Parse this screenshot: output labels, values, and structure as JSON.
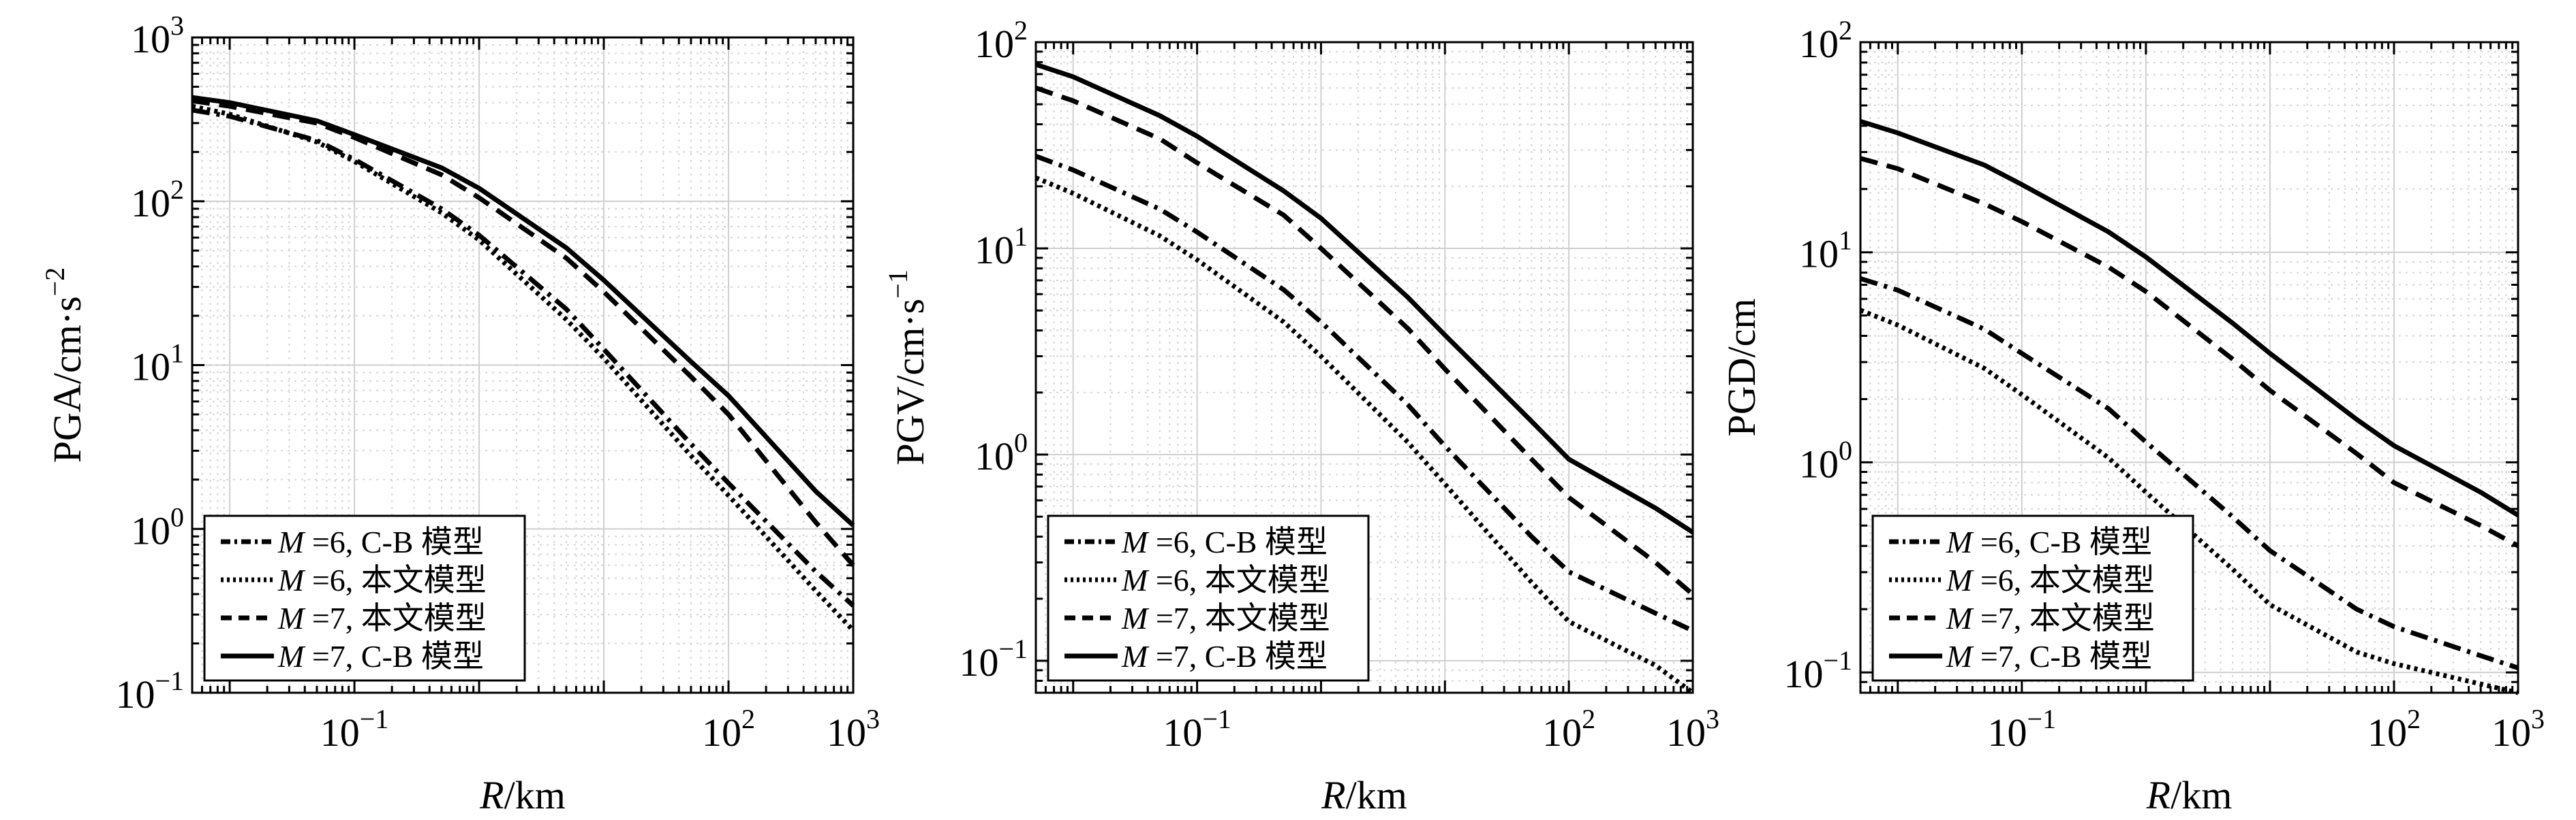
{
  "chart_data": [
    {
      "type": "line",
      "ylabel": "PGA/cm·s",
      "ylabel_unit_exp": "−2",
      "xlabel": "R/km",
      "x_scale": "log",
      "y_scale": "log",
      "xlim": [
        0.005,
        1000
      ],
      "ylim": [
        0.1,
        1000
      ],
      "x_ticks": [
        {
          "base": "10",
          "exp": "−1",
          "value": 0.1
        },
        {
          "base": "10",
          "exp": "2",
          "value": 100
        },
        {
          "base": "10",
          "exp": "3",
          "value": 1000
        }
      ],
      "y_ticks": [
        {
          "base": "10",
          "exp": "−1",
          "value": 0.1
        },
        {
          "base": "10",
          "exp": "0",
          "value": 1
        },
        {
          "base": "10",
          "exp": "1",
          "value": 10
        },
        {
          "base": "10",
          "exp": "2",
          "value": 100
        },
        {
          "base": "10",
          "exp": "3",
          "value": 1000
        }
      ],
      "grid": true,
      "legend_position": "bottom-left",
      "series": [
        {
          "name": "M=6, C-B 模型",
          "style": "dashdot",
          "x": [
            0.005,
            0.01,
            0.05,
            0.1,
            0.5,
            1,
            5,
            10,
            50,
            100,
            500,
            1000
          ],
          "values": [
            360,
            330,
            235,
            180,
            90,
            62,
            22,
            12.5,
            3.3,
            1.9,
            0.55,
            0.34
          ]
        },
        {
          "name": "M=6, 本文模型",
          "style": "dotted",
          "x": [
            0.005,
            0.01,
            0.05,
            0.1,
            0.5,
            1,
            5,
            10,
            50,
            100,
            500,
            1000
          ],
          "values": [
            380,
            340,
            230,
            175,
            85,
            58,
            19,
            11,
            2.8,
            1.6,
            0.42,
            0.24
          ]
        },
        {
          "name": "M=7, 本文模型",
          "style": "dashed",
          "x": [
            0.005,
            0.01,
            0.05,
            0.1,
            0.5,
            1,
            5,
            10,
            50,
            100,
            500,
            1000
          ],
          "values": [
            410,
            380,
            300,
            245,
            145,
            105,
            45,
            28,
            8.5,
            5,
            1.1,
            0.6
          ]
        },
        {
          "name": "M=7, C-B 模型",
          "style": "solid",
          "x": [
            0.005,
            0.01,
            0.05,
            0.1,
            0.5,
            1,
            5,
            10,
            50,
            100,
            500,
            1000
          ],
          "values": [
            430,
            400,
            310,
            255,
            160,
            120,
            52,
            33,
            10.5,
            6.5,
            1.7,
            1.05
          ]
        }
      ],
      "legend": [
        {
          "m": "M",
          "rest": " =6,  C-B 模型"
        },
        {
          "m": "M",
          "rest": " =6,  本文模型"
        },
        {
          "m": "M",
          "rest": " =7,  本文模型"
        },
        {
          "m": "M",
          "rest": " =7,  C-B 模型"
        }
      ]
    },
    {
      "type": "line",
      "ylabel": "PGV/cm·s",
      "ylabel_unit_exp": "−1",
      "xlabel": "R/km",
      "x_scale": "log",
      "y_scale": "log",
      "xlim": [
        0.005,
        1000
      ],
      "ylim": [
        0.07,
        100
      ],
      "x_ticks": [
        {
          "base": "10",
          "exp": "−1",
          "value": 0.1
        },
        {
          "base": "10",
          "exp": "2",
          "value": 100
        },
        {
          "base": "10",
          "exp": "3",
          "value": 1000
        }
      ],
      "y_ticks": [
        {
          "base": "10",
          "exp": "−1",
          "value": 0.1
        },
        {
          "base": "10",
          "exp": "0",
          "value": 1
        },
        {
          "base": "10",
          "exp": "1",
          "value": 10
        },
        {
          "base": "10",
          "exp": "2",
          "value": 100
        }
      ],
      "grid": true,
      "legend_position": "bottom-left",
      "series": [
        {
          "name": "M=6, C-B 模型",
          "style": "dashdot",
          "x": [
            0.005,
            0.01,
            0.05,
            0.1,
            0.5,
            1,
            5,
            10,
            50,
            100,
            500,
            1000
          ],
          "values": [
            28,
            24,
            15.5,
            12,
            6.3,
            4.4,
            1.75,
            1.1,
            0.4,
            0.27,
            0.17,
            0.14
          ]
        },
        {
          "name": "M=6, 本文模型",
          "style": "dotted",
          "x": [
            0.005,
            0.01,
            0.05,
            0.1,
            0.5,
            1,
            5,
            10,
            50,
            100,
            500,
            1000
          ],
          "values": [
            22,
            18.5,
            11.5,
            8.8,
            4.4,
            3.0,
            1.15,
            0.72,
            0.24,
            0.155,
            0.095,
            0.07
          ]
        },
        {
          "name": "M=7, 本文模型",
          "style": "dashed",
          "x": [
            0.005,
            0.01,
            0.05,
            0.1,
            0.5,
            1,
            5,
            10,
            50,
            100,
            500,
            1000
          ],
          "values": [
            60,
            52,
            34,
            26,
            14.5,
            10,
            4.1,
            2.6,
            0.95,
            0.62,
            0.3,
            0.21
          ]
        },
        {
          "name": "M=7, C-B 模型",
          "style": "solid",
          "x": [
            0.005,
            0.01,
            0.05,
            0.1,
            0.5,
            1,
            5,
            10,
            50,
            100,
            500,
            1000
          ],
          "values": [
            78,
            68,
            44,
            35,
            19,
            14,
            5.8,
            3.8,
            1.45,
            0.95,
            0.55,
            0.42
          ]
        }
      ],
      "legend": [
        {
          "m": "M",
          "rest": " =6,  C-B 模型"
        },
        {
          "m": "M",
          "rest": " =6,  本文模型"
        },
        {
          "m": "M",
          "rest": " =7,  本文模型"
        },
        {
          "m": "M",
          "rest": " =7,  C-B 模型"
        }
      ]
    },
    {
      "type": "line",
      "ylabel": "PGD/cm",
      "ylabel_unit_exp": "",
      "xlabel": "R/km",
      "x_scale": "log",
      "y_scale": "log",
      "xlim": [
        0.005,
        1000
      ],
      "ylim": [
        0.08,
        100
      ],
      "x_ticks": [
        {
          "base": "10",
          "exp": "−1",
          "value": 0.1
        },
        {
          "base": "10",
          "exp": "2",
          "value": 100
        },
        {
          "base": "10",
          "exp": "3",
          "value": 1000
        }
      ],
      "y_ticks": [
        {
          "base": "10",
          "exp": "−1",
          "value": 0.1
        },
        {
          "base": "10",
          "exp": "0",
          "value": 1
        },
        {
          "base": "10",
          "exp": "1",
          "value": 10
        },
        {
          "base": "10",
          "exp": "2",
          "value": 100
        }
      ],
      "grid": true,
      "legend_position": "bottom-left",
      "series": [
        {
          "name": "M=6, C-B 模型",
          "style": "dashdot",
          "x": [
            0.005,
            0.01,
            0.05,
            0.1,
            0.5,
            1,
            5,
            10,
            50,
            100,
            500,
            1000
          ],
          "values": [
            7.5,
            6.6,
            4.3,
            3.3,
            1.8,
            1.25,
            0.55,
            0.38,
            0.2,
            0.165,
            0.12,
            0.105
          ]
        },
        {
          "name": "M=6, 本文模型",
          "style": "dotted",
          "x": [
            0.005,
            0.01,
            0.05,
            0.1,
            0.5,
            1,
            5,
            10,
            50,
            100,
            500,
            1000
          ],
          "values": [
            5.3,
            4.5,
            2.8,
            2.1,
            1.05,
            0.72,
            0.31,
            0.21,
            0.125,
            0.11,
            0.088,
            0.08
          ]
        },
        {
          "name": "M=7, 本文模型",
          "style": "dashed",
          "x": [
            0.005,
            0.01,
            0.05,
            0.1,
            0.5,
            1,
            5,
            10,
            50,
            100,
            500,
            1000
          ],
          "values": [
            28,
            25,
            17,
            14,
            8.5,
            6.5,
            3.1,
            2.2,
            1.1,
            0.8,
            0.5,
            0.4
          ]
        },
        {
          "name": "M=7, C-B 模型",
          "style": "solid",
          "x": [
            0.005,
            0.01,
            0.05,
            0.1,
            0.5,
            1,
            5,
            10,
            50,
            100,
            500,
            1000
          ],
          "values": [
            42,
            37,
            26,
            21,
            12.5,
            9.5,
            4.6,
            3.3,
            1.6,
            1.2,
            0.72,
            0.56
          ]
        }
      ],
      "legend": [
        {
          "m": "M",
          "rest": " =6,  C-B 模型"
        },
        {
          "m": "M",
          "rest": " =6,  本文模型"
        },
        {
          "m": "M",
          "rest": " =7,  本文模型"
        },
        {
          "m": "M",
          "rest": " =7,  C-B 模型"
        }
      ]
    }
  ]
}
